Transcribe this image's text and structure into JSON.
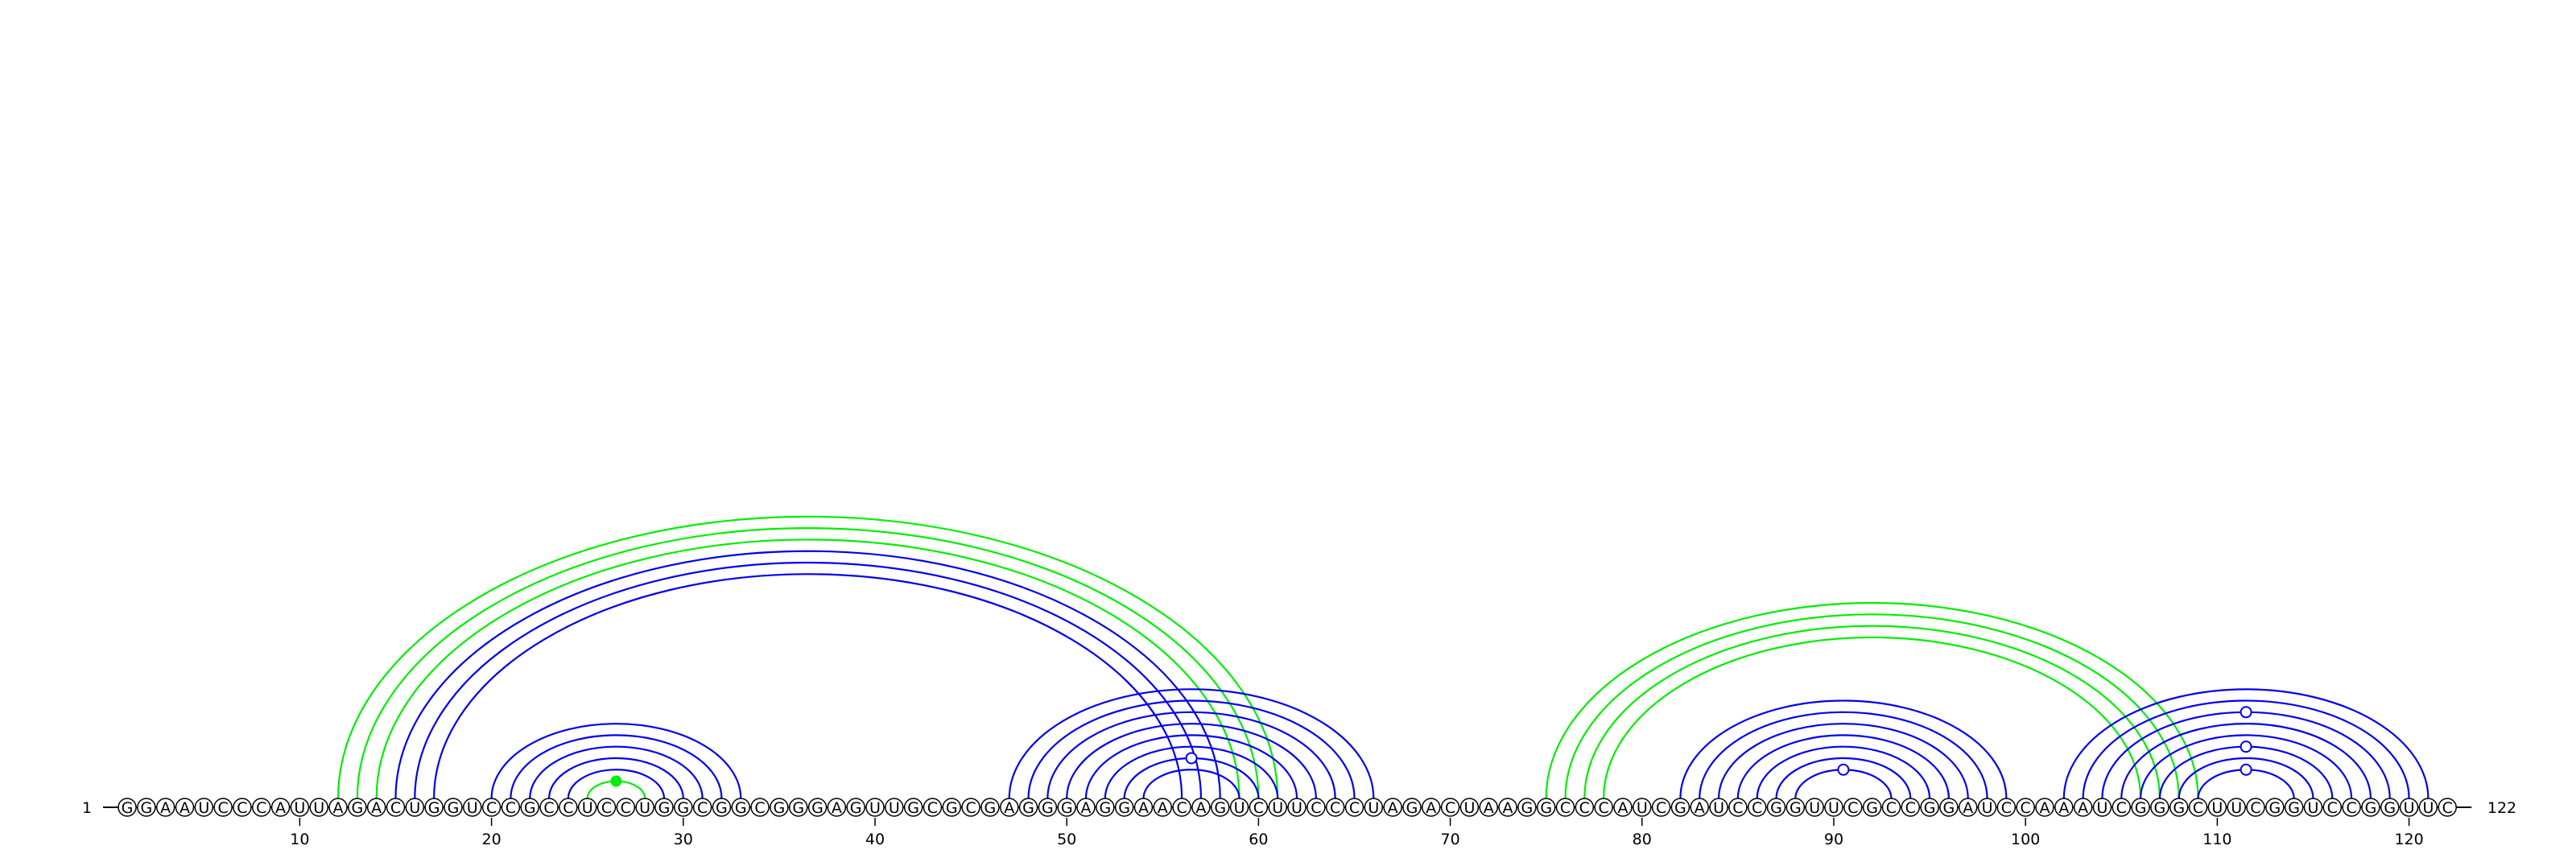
{
  "sequence": "GGAAUCCCAUUAGACUGGUCCGCCUCCUGGCGGCGGGAGUUGCGCGAGGGAGGAACAGUCUUCCCUAGACUAAGGCCCAUCGAUCCGGUUCGCCGGAUCCAAAUCGGGCUUCGGUCCGGUUC",
  "start_label": "1",
  "end_label": "122",
  "tick_positions": [
    10,
    20,
    30,
    40,
    50,
    60,
    70,
    80,
    90,
    100,
    110,
    120
  ],
  "colors": {
    "blue": "#0000ee",
    "green": "#00ee00",
    "backbone": "#000000",
    "nucleotide_fill": "#ffffff"
  },
  "arc_groups": [
    {
      "name": "pseudoknot-1",
      "color": "green",
      "pairs": [
        [
          12,
          61
        ],
        [
          13,
          60
        ],
        [
          14,
          59
        ]
      ]
    },
    {
      "name": "helix-long-range",
      "color": "blue",
      "pairs": [
        [
          15,
          58
        ],
        [
          16,
          57
        ],
        [
          17,
          56
        ]
      ]
    },
    {
      "name": "hairpin-1",
      "color": "blue",
      "pairs": [
        [
          20,
          33
        ],
        [
          21,
          32
        ],
        [
          22,
          31
        ],
        [
          23,
          30
        ],
        [
          24,
          29
        ]
      ]
    },
    {
      "name": "hairpin-1-gu",
      "color": "green",
      "pairs": [
        [
          25,
          28
        ]
      ],
      "marker": {
        "type": "filled-dot",
        "color": "green"
      }
    },
    {
      "name": "helix-47-66",
      "color": "blue",
      "pairs": [
        [
          47,
          66
        ],
        [
          48,
          65
        ],
        [
          49,
          64
        ],
        [
          50,
          63
        ],
        [
          51,
          62
        ],
        [
          52,
          61
        ],
        [
          53,
          60
        ],
        [
          54,
          59
        ]
      ],
      "marker": {
        "type": "open-circle",
        "between": [
          53,
          60
        ]
      }
    },
    {
      "name": "pseudoknot-2",
      "color": "green",
      "pairs": [
        [
          75,
          109
        ],
        [
          76,
          108
        ],
        [
          77,
          107
        ],
        [
          78,
          106
        ]
      ]
    },
    {
      "name": "hairpin-2",
      "color": "blue",
      "pairs": [
        [
          82,
          99
        ],
        [
          83,
          98
        ],
        [
          84,
          97
        ],
        [
          85,
          96
        ],
        [
          86,
          95
        ],
        [
          87,
          94
        ],
        [
          88,
          93
        ]
      ],
      "marker": {
        "type": "open-circle",
        "between": [
          88,
          93
        ]
      }
    },
    {
      "name": "hairpin-3",
      "color": "blue",
      "pairs": [
        [
          102,
          121
        ],
        [
          103,
          120
        ],
        [
          104,
          119
        ],
        [
          105,
          118
        ],
        [
          106,
          117
        ],
        [
          107,
          116
        ],
        [
          108,
          115
        ],
        [
          109,
          114
        ]
      ],
      "marker": {
        "type": "open-circle",
        "multiple": [
          [
            104,
            119
          ],
          [
            107,
            116
          ],
          [
            109,
            114
          ]
        ]
      }
    }
  ]
}
